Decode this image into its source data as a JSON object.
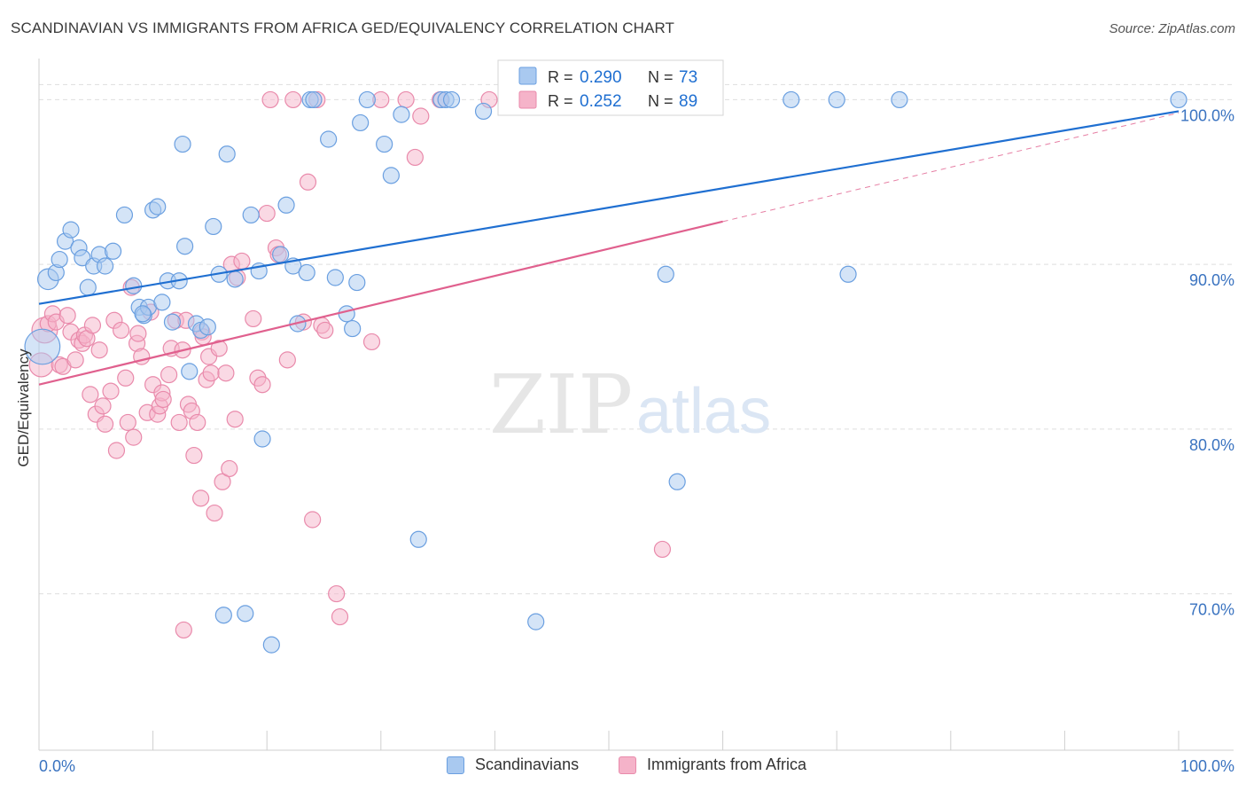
{
  "header": {
    "title": "SCANDINAVIAN VS IMMIGRANTS FROM AFRICA GED/EQUIVALENCY CORRELATION CHART",
    "source": "Source: ZipAtlas.com"
  },
  "watermark": {
    "zip": "ZIP",
    "atlas": "atlas"
  },
  "colors": {
    "blue": "#1f6fd1",
    "blue_fill": "#a9c9f0",
    "blue_stroke": "#6a9fe0",
    "pink": "#e0608e",
    "pink_fill": "#f5b3c9",
    "pink_stroke": "#e98aab",
    "grid": "#dedede",
    "axis_text": "#3a73c0"
  },
  "stats_legend": {
    "rows": [
      {
        "r_label": "R =",
        "r_value": "0.290",
        "n_label": "N =",
        "n_value": "73"
      },
      {
        "r_label": "R =",
        "r_value": "0.252",
        "n_label": "N =",
        "n_value": "89"
      }
    ]
  },
  "bottom_legend": {
    "items": [
      {
        "label": "Scandinavians"
      },
      {
        "label": "Immigrants from Africa"
      }
    ]
  },
  "chart_data": {
    "type": "scatter",
    "title": "SCANDINAVIAN VS IMMIGRANTS FROM AFRICA GED/EQUIVALENCY CORRELATION CHART",
    "xlabel": "",
    "ylabel": "GED/Equivalency",
    "xlim": [
      0,
      100
    ],
    "ylim": [
      60.5,
      102.5
    ],
    "x_tick_labels": [
      "0.0%",
      "100.0%"
    ],
    "y_ticks": [
      70,
      80,
      90,
      100
    ],
    "y_tick_labels": [
      "70.0%",
      "80.0%",
      "90.0%",
      "100.0%"
    ],
    "grid": true,
    "legend_position": "bottom",
    "series": [
      {
        "name": "Scandinavians",
        "r": 0.29,
        "n": 73,
        "trend": {
          "x0": 0,
          "y0": 87.6,
          "x1": 100,
          "y1": 99.3
        },
        "points": [
          [
            0.3,
            85.0,
            2.2
          ],
          [
            0.8,
            89.1,
            1.3
          ],
          [
            1.5,
            89.5,
            1.0
          ],
          [
            1.8,
            90.3,
            1.0
          ],
          [
            2.3,
            91.4,
            1.0
          ],
          [
            2.8,
            92.1,
            1.0
          ],
          [
            3.5,
            91.0,
            1.0
          ],
          [
            3.8,
            90.4,
            1.0
          ],
          [
            4.3,
            88.6,
            1.0
          ],
          [
            4.8,
            89.9,
            1.0
          ],
          [
            5.3,
            90.6,
            1.0
          ],
          [
            5.8,
            89.9,
            1.0
          ],
          [
            6.5,
            90.8,
            1.0
          ],
          [
            7.5,
            93.0,
            1.0
          ],
          [
            8.3,
            88.7,
            1.0
          ],
          [
            8.8,
            87.4,
            1.0
          ],
          [
            9.2,
            86.9,
            1.0
          ],
          [
            9.6,
            87.4,
            1.0
          ],
          [
            10.0,
            93.3,
            1.0
          ],
          [
            10.4,
            93.5,
            1.0
          ],
          [
            10.8,
            87.7,
            1.0
          ],
          [
            11.3,
            89.0,
            1.0
          ],
          [
            11.7,
            86.5,
            1.0
          ],
          [
            12.3,
            89.0,
            1.0
          ],
          [
            12.8,
            91.1,
            1.0
          ],
          [
            13.2,
            83.5,
            1.0
          ],
          [
            13.8,
            86.4,
            1.0
          ],
          [
            14.2,
            86.0,
            1.0
          ],
          [
            14.8,
            86.2,
            1.0
          ],
          [
            15.3,
            92.3,
            1.0
          ],
          [
            15.8,
            89.4,
            1.0
          ],
          [
            16.5,
            96.7,
            1.0
          ],
          [
            17.2,
            89.1,
            1.0
          ],
          [
            18.6,
            93.0,
            1.0
          ],
          [
            19.3,
            89.6,
            1.0
          ],
          [
            19.6,
            79.4,
            1.0
          ],
          [
            20.4,
            66.9,
            1.0
          ],
          [
            21.2,
            90.6,
            1.0
          ],
          [
            21.7,
            93.6,
            1.0
          ],
          [
            22.3,
            89.9,
            1.0
          ],
          [
            22.7,
            86.4,
            1.0
          ],
          [
            23.5,
            89.5,
            1.0
          ],
          [
            23.8,
            100.0,
            1.0
          ],
          [
            24.1,
            100.0,
            1.0
          ],
          [
            25.4,
            97.6,
            1.0
          ],
          [
            26.0,
            89.2,
            1.0
          ],
          [
            27.0,
            87.0,
            1.0
          ],
          [
            27.5,
            86.1,
            1.0
          ],
          [
            27.9,
            88.9,
            1.0
          ],
          [
            28.2,
            98.6,
            1.0
          ],
          [
            28.8,
            100.0,
            1.0
          ],
          [
            30.3,
            97.3,
            1.0
          ],
          [
            30.9,
            95.4,
            1.0
          ],
          [
            31.8,
            99.1,
            1.0
          ],
          [
            33.3,
            73.3,
            1.0
          ],
          [
            35.3,
            100.0,
            1.0
          ],
          [
            35.7,
            100.0,
            1.0
          ],
          [
            36.2,
            100.0,
            1.0
          ],
          [
            39.0,
            99.3,
            1.0
          ],
          [
            43.0,
            100.0,
            1.0
          ],
          [
            43.6,
            68.3,
            1.0
          ],
          [
            51.3,
            100.0,
            1.0
          ],
          [
            55.0,
            89.4,
            1.0
          ],
          [
            56.0,
            76.8,
            1.0
          ],
          [
            66.0,
            100.0,
            1.0
          ],
          [
            70.0,
            100.0,
            1.0
          ],
          [
            71.0,
            89.4,
            1.0
          ],
          [
            75.5,
            100.0,
            1.0
          ],
          [
            100.0,
            100.0,
            1.0
          ],
          [
            16.2,
            68.7,
            1.0
          ],
          [
            18.1,
            68.8,
            1.0
          ],
          [
            12.6,
            97.3,
            1.0
          ],
          [
            9.1,
            87.0,
            1.0
          ]
        ]
      },
      {
        "name": "Immigrants from Africa",
        "r": 0.252,
        "n": 89,
        "trend": {
          "x0": 0,
          "y0": 82.7,
          "x1": 60,
          "y1": 92.6,
          "dash_x1": 100,
          "dash_y1": 99.2
        },
        "points": [
          [
            0.2,
            83.9,
            1.5
          ],
          [
            0.5,
            86.0,
            1.6
          ],
          [
            0.8,
            86.4,
            1.0
          ],
          [
            1.2,
            87.0,
            1.0
          ],
          [
            1.5,
            86.5,
            1.0
          ],
          [
            1.8,
            83.9,
            1.0
          ],
          [
            2.1,
            83.8,
            1.0
          ],
          [
            2.5,
            86.9,
            1.0
          ],
          [
            2.8,
            85.9,
            1.0
          ],
          [
            3.2,
            84.2,
            1.0
          ],
          [
            3.5,
            85.4,
            1.0
          ],
          [
            3.8,
            85.2,
            1.0
          ],
          [
            4.0,
            85.7,
            1.0
          ],
          [
            4.2,
            85.5,
            1.0
          ],
          [
            4.5,
            82.1,
            1.0
          ],
          [
            4.7,
            86.3,
            1.0
          ],
          [
            5.0,
            80.9,
            1.0
          ],
          [
            5.3,
            84.8,
            1.0
          ],
          [
            5.6,
            81.4,
            1.0
          ],
          [
            5.8,
            80.3,
            1.0
          ],
          [
            6.3,
            82.3,
            1.0
          ],
          [
            6.6,
            86.6,
            1.0
          ],
          [
            6.8,
            78.7,
            1.0
          ],
          [
            7.2,
            86.0,
            1.0
          ],
          [
            7.6,
            83.1,
            1.0
          ],
          [
            7.8,
            80.4,
            1.0
          ],
          [
            8.1,
            88.6,
            1.0
          ],
          [
            8.3,
            79.5,
            1.0
          ],
          [
            8.6,
            85.2,
            1.0
          ],
          [
            8.7,
            85.8,
            1.0
          ],
          [
            9.0,
            84.4,
            1.0
          ],
          [
            9.5,
            81.0,
            1.0
          ],
          [
            9.8,
            87.1,
            1.0
          ],
          [
            10.0,
            82.7,
            1.0
          ],
          [
            10.4,
            80.9,
            1.0
          ],
          [
            10.6,
            81.4,
            1.0
          ],
          [
            10.8,
            82.2,
            1.0
          ],
          [
            10.9,
            81.8,
            1.0
          ],
          [
            11.4,
            83.3,
            1.0
          ],
          [
            11.6,
            84.9,
            1.0
          ],
          [
            12.0,
            86.6,
            1.0
          ],
          [
            12.3,
            80.4,
            1.0
          ],
          [
            12.6,
            84.8,
            1.0
          ],
          [
            12.9,
            86.6,
            1.0
          ],
          [
            13.1,
            81.5,
            1.0
          ],
          [
            13.4,
            81.1,
            1.0
          ],
          [
            13.6,
            78.4,
            1.0
          ],
          [
            13.9,
            80.4,
            1.0
          ],
          [
            14.2,
            75.8,
            1.0
          ],
          [
            14.3,
            85.9,
            1.0
          ],
          [
            14.4,
            85.6,
            1.0
          ],
          [
            14.7,
            83.0,
            1.0
          ],
          [
            14.9,
            84.4,
            1.0
          ],
          [
            15.1,
            83.4,
            1.0
          ],
          [
            15.4,
            74.9,
            1.0
          ],
          [
            15.8,
            84.9,
            1.0
          ],
          [
            16.1,
            76.8,
            1.0
          ],
          [
            16.4,
            83.4,
            1.0
          ],
          [
            16.7,
            77.6,
            1.0
          ],
          [
            16.9,
            90.0,
            1.0
          ],
          [
            17.2,
            80.6,
            1.0
          ],
          [
            17.4,
            89.2,
            1.0
          ],
          [
            17.8,
            90.2,
            1.0
          ],
          [
            18.8,
            86.7,
            1.0
          ],
          [
            19.2,
            83.1,
            1.0
          ],
          [
            19.6,
            82.7,
            1.0
          ],
          [
            20.0,
            93.1,
            1.0
          ],
          [
            20.3,
            100.0,
            1.0
          ],
          [
            20.8,
            91.0,
            1.0
          ],
          [
            21.0,
            90.6,
            1.0
          ],
          [
            21.8,
            84.2,
            1.0
          ],
          [
            22.3,
            100.0,
            1.0
          ],
          [
            23.2,
            86.5,
            1.0
          ],
          [
            23.6,
            95.0,
            1.0
          ],
          [
            24.0,
            74.5,
            1.0
          ],
          [
            24.4,
            100.0,
            1.0
          ],
          [
            24.8,
            86.3,
            1.0
          ],
          [
            25.1,
            86.0,
            1.0
          ],
          [
            26.1,
            70.0,
            1.0
          ],
          [
            26.4,
            68.6,
            1.0
          ],
          [
            29.2,
            85.3,
            1.0
          ],
          [
            30.0,
            100.0,
            1.0
          ],
          [
            32.2,
            100.0,
            1.0
          ],
          [
            33.0,
            96.5,
            1.0
          ],
          [
            33.5,
            99.0,
            1.0
          ],
          [
            35.2,
            100.0,
            1.0
          ],
          [
            39.5,
            100.0,
            1.0
          ],
          [
            54.7,
            72.7,
            1.0
          ],
          [
            12.7,
            67.8,
            1.0
          ]
        ]
      }
    ]
  }
}
